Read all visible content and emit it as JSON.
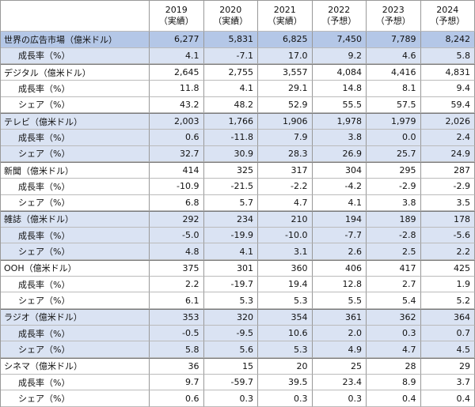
{
  "header": {
    "columns": [
      {
        "year": "2019",
        "note": "（実績）"
      },
      {
        "year": "2020",
        "note": "（実績）"
      },
      {
        "year": "2021",
        "note": "（実績）"
      },
      {
        "year": "2022",
        "note": "（予想）"
      },
      {
        "year": "2023",
        "note": "（予想）"
      },
      {
        "year": "2024",
        "note": "（予想）"
      }
    ]
  },
  "groups": [
    {
      "label": "世界の広告市場（億米ドル）",
      "values": [
        "6,277",
        "5,831",
        "6,825",
        "7,450",
        "7,789",
        "8,242"
      ],
      "rows": [
        {
          "label": "成長率（%）",
          "values": [
            "4.1",
            "-7.1",
            "17.0",
            "9.2",
            "4.6",
            "5.8"
          ]
        }
      ]
    },
    {
      "label": "デジタル（億米ドル）",
      "values": [
        "2,645",
        "2,755",
        "3,557",
        "4,084",
        "4,416",
        "4,831"
      ],
      "rows": [
        {
          "label": "成長率（%）",
          "values": [
            "11.8",
            "4.1",
            "29.1",
            "14.8",
            "8.1",
            "9.4"
          ]
        },
        {
          "label": "シェア（%）",
          "values": [
            "43.2",
            "48.2",
            "52.9",
            "55.5",
            "57.5",
            "59.4"
          ]
        }
      ]
    },
    {
      "label": "テレビ（億米ドル）",
      "values": [
        "2,003",
        "1,766",
        "1,906",
        "1,978",
        "1,979",
        "2,026"
      ],
      "rows": [
        {
          "label": "成長率（%）",
          "values": [
            "0.6",
            "-11.8",
            "7.9",
            "3.8",
            "0.0",
            "2.4"
          ]
        },
        {
          "label": "シェア（%）",
          "values": [
            "32.7",
            "30.9",
            "28.3",
            "26.9",
            "25.7",
            "24.9"
          ]
        }
      ]
    },
    {
      "label": "新聞（億米ドル）",
      "values": [
        "414",
        "325",
        "317",
        "304",
        "295",
        "287"
      ],
      "rows": [
        {
          "label": "成長率（%）",
          "values": [
            "-10.9",
            "-21.5",
            "-2.2",
            "-4.2",
            "-2.9",
            "-2.9"
          ]
        },
        {
          "label": "シェア（%）",
          "values": [
            "6.8",
            "5.7",
            "4.7",
            "4.1",
            "3.8",
            "3.5"
          ]
        }
      ]
    },
    {
      "label": "雑誌（億米ドル）",
      "values": [
        "292",
        "234",
        "210",
        "194",
        "189",
        "178"
      ],
      "rows": [
        {
          "label": "成長率（%）",
          "values": [
            "-5.0",
            "-19.9",
            "-10.0",
            "-7.7",
            "-2.8",
            "-5.6"
          ]
        },
        {
          "label": "シェア（%）",
          "values": [
            "4.8",
            "4.1",
            "3.1",
            "2.6",
            "2.5",
            "2.2"
          ]
        }
      ]
    },
    {
      "label": "OOH（億米ドル）",
      "values": [
        "375",
        "301",
        "360",
        "406",
        "417",
        "425"
      ],
      "rows": [
        {
          "label": "成長率（%）",
          "values": [
            "2.2",
            "-19.7",
            "19.4",
            "12.8",
            "2.7",
            "1.9"
          ]
        },
        {
          "label": "シェア（%）",
          "values": [
            "6.1",
            "5.3",
            "5.3",
            "5.5",
            "5.4",
            "5.2"
          ]
        }
      ]
    },
    {
      "label": "ラジオ（億米ドル）",
      "values": [
        "353",
        "320",
        "354",
        "361",
        "362",
        "364"
      ],
      "rows": [
        {
          "label": "成長率（%）",
          "values": [
            "-0.5",
            "-9.5",
            "10.6",
            "2.0",
            "0.3",
            "0.7"
          ]
        },
        {
          "label": "シェア（%）",
          "values": [
            "5.8",
            "5.6",
            "5.3",
            "4.9",
            "4.7",
            "4.5"
          ]
        }
      ]
    },
    {
      "label": "シネマ（億米ドル）",
      "values": [
        "36",
        "15",
        "20",
        "25",
        "28",
        "29"
      ],
      "rows": [
        {
          "label": "成長率（%）",
          "values": [
            "9.7",
            "-59.7",
            "39.5",
            "23.4",
            "8.9",
            "3.7"
          ]
        },
        {
          "label": "シェア（%）",
          "values": [
            "0.6",
            "0.3",
            "0.3",
            "0.3",
            "0.4",
            "0.4"
          ]
        }
      ]
    }
  ]
}
